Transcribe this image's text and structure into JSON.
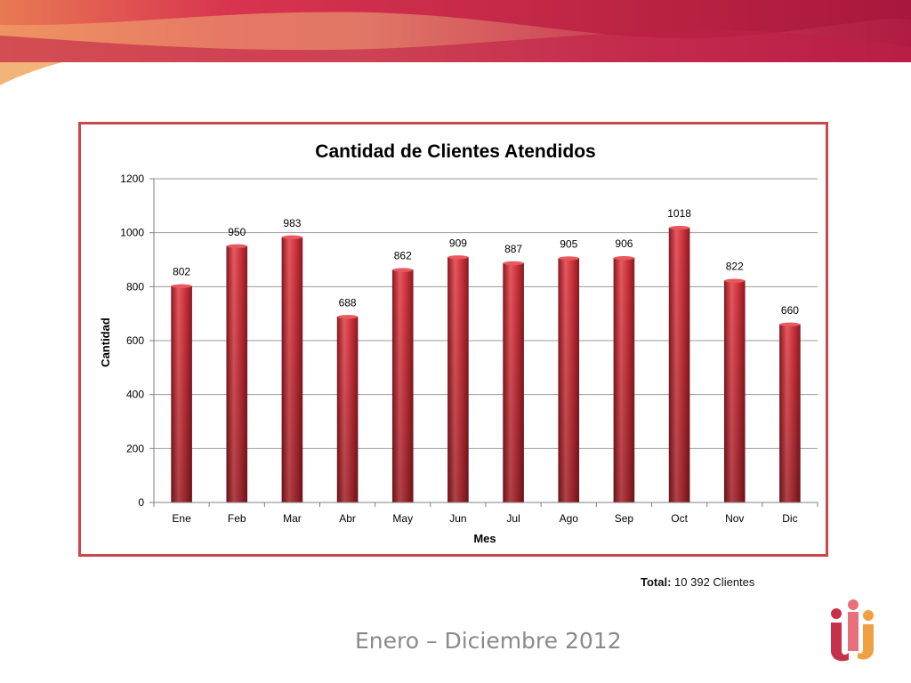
{
  "slide": {
    "total_label": "Total:",
    "total_value": "10 392 Clientes",
    "footer": "Enero – Diciembre 2012"
  },
  "colors": {
    "bar": "#c8303a",
    "bar_dark": "#8e1a22",
    "bar_light": "#e8585f",
    "frame": "#c9474d",
    "grid": "#9a9a9a"
  },
  "chart_data": {
    "type": "bar",
    "title": "Cantidad de Clientes Atendidos",
    "xlabel": "Mes",
    "ylabel": "Cantidad",
    "categories": [
      "Ene",
      "Feb",
      "Mar",
      "Abr",
      "May",
      "Jun",
      "Jul",
      "Ago",
      "Sep",
      "Oct",
      "Nov",
      "Dic"
    ],
    "values": [
      802,
      950,
      983,
      688,
      862,
      909,
      887,
      905,
      906,
      1018,
      822,
      660
    ],
    "ylim": [
      0,
      1200
    ],
    "yticks": [
      0,
      200,
      400,
      600,
      800,
      1000,
      1200
    ],
    "grid": true,
    "legend": "none"
  }
}
